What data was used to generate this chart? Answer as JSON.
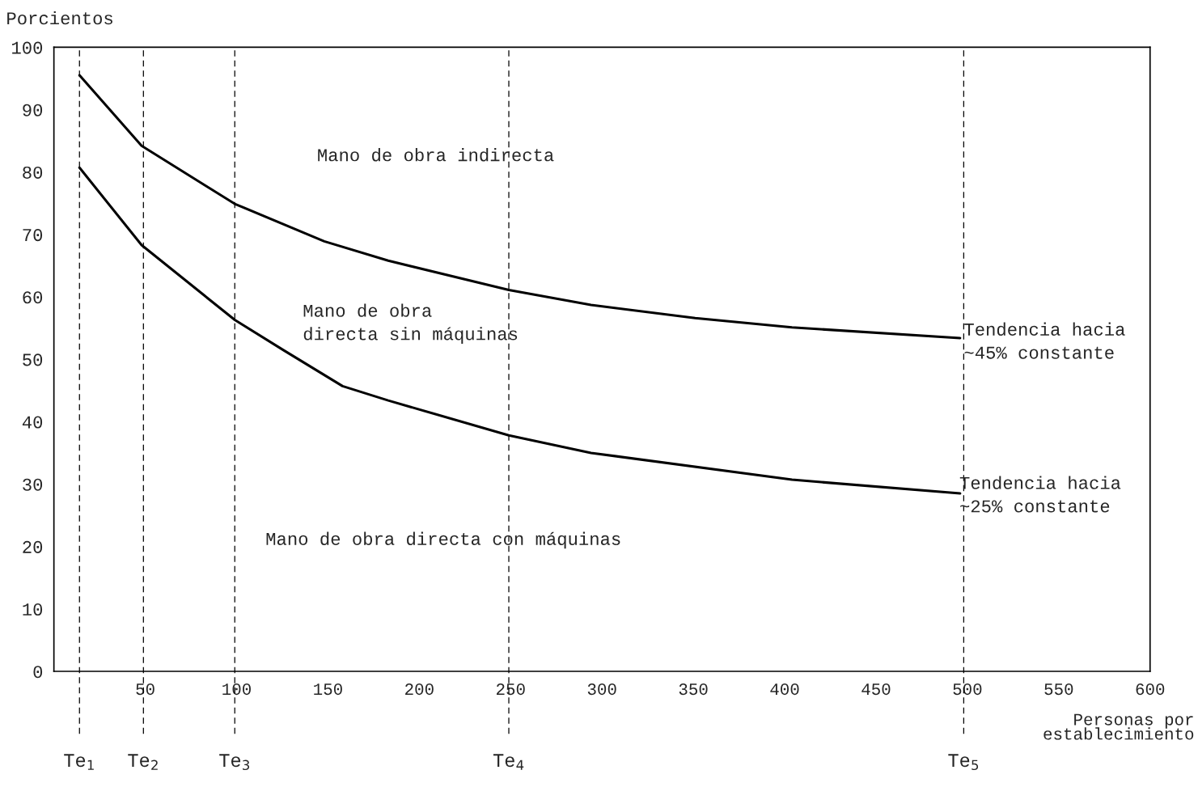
{
  "chart_data": {
    "type": "line",
    "ylabel": "Porcientos",
    "xlabel": "Personas por\nestablecimiento",
    "series": [
      {
        "color": "#000000",
        "x": [
          14,
          48,
          99,
          148,
          183,
          249,
          294,
          351,
          404,
          496
        ],
        "values": [
          95.5,
          84.2,
          74.9,
          68.9,
          65.8,
          61.1,
          58.7,
          56.6,
          55.1,
          53.4
        ]
      },
      {
        "color": "#000000",
        "x": [
          14,
          48,
          99,
          126,
          158,
          183,
          249,
          294,
          404,
          496
        ],
        "values": [
          80.7,
          68.3,
          56.3,
          51.4,
          45.7,
          43.4,
          37.8,
          35.0,
          30.7,
          28.5
        ]
      }
    ],
    "xlim": [
      0,
      600
    ],
    "ylim": [
      0,
      100
    ],
    "xticks": [
      50,
      100,
      150,
      200,
      250,
      300,
      350,
      400,
      450,
      500,
      550,
      600
    ],
    "yticks": [
      0,
      10,
      20,
      30,
      40,
      50,
      60,
      70,
      80,
      90,
      100
    ],
    "ref_lines": [
      {
        "axis": "x",
        "value": 14,
        "label": "Te$_{1}$",
        "color": "#000000",
        "line_style": "dashed"
      },
      {
        "axis": "x",
        "value": 49,
        "label": "Te$_{2}$",
        "color": "#000000",
        "line_style": "dashed"
      },
      {
        "axis": "x",
        "value": 99,
        "label": "Te$_{3}$",
        "color": "#000000",
        "line_style": "dashed"
      },
      {
        "axis": "x",
        "value": 249,
        "label": "Te$_{4}$",
        "color": "#000000",
        "line_style": "dashed"
      },
      {
        "axis": "x",
        "value": 498,
        "label": "Te$_{5}$",
        "color": "#000000",
        "line_style": "dashed"
      }
    ],
    "annotations": [
      "Mano de obra indirecta",
      "Mano de obra\ndirecta sin máquinas",
      "Mano de obra directa con máquinas",
      "Tendencia hacia\n~45% constante",
      "Tendencia hacia\n~25% constante"
    ],
    "grid": false,
    "legend": false,
    "marker": "none",
    "line_style": "solid"
  }
}
